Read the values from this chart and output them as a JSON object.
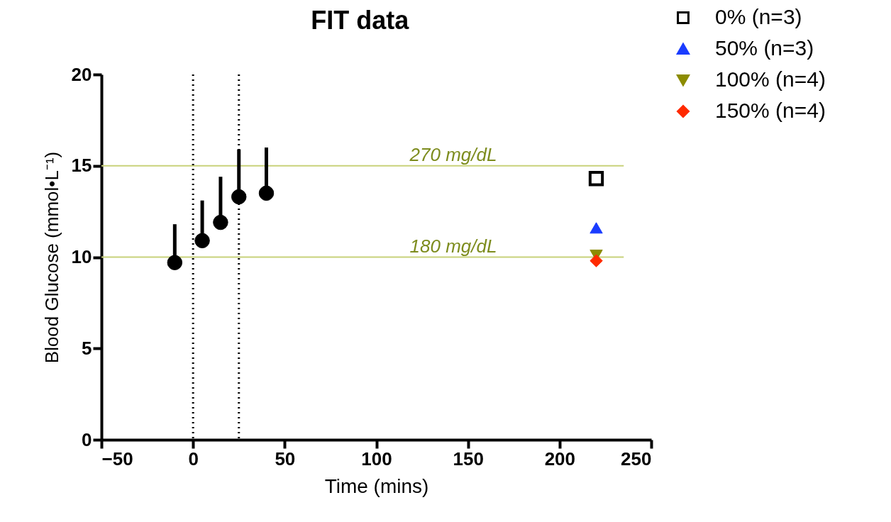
{
  "chart_data": {
    "type": "scatter",
    "title": "FIT data",
    "xlabel": "Time (mins)",
    "ylabel": "Blood Glucose (mmol•L⁻¹)",
    "xlim": [
      -50,
      250
    ],
    "xticks": [
      -50,
      0,
      50,
      100,
      150,
      200,
      250
    ],
    "ylim": [
      0,
      20
    ],
    "yticks": [
      0,
      5,
      10,
      15,
      20
    ],
    "grid": false,
    "legend": "top right",
    "series": [
      {
        "color": "#000000",
        "marker": "circle",
        "x": [
          -10,
          5,
          15,
          25,
          40
        ],
        "values": [
          9.7,
          10.9,
          11.9,
          13.3,
          13.5
        ],
        "errors": [
          [
            9.7,
            11.8
          ],
          [
            10.9,
            13.1
          ],
          [
            11.9,
            14.4
          ],
          [
            13.3,
            15.9
          ],
          [
            13.5,
            16.0
          ]
        ]
      },
      {
        "name": "0% (n=3)",
        "color": "#000000",
        "marker": "square",
        "x": [
          220
        ],
        "values": [
          14.3
        ]
      },
      {
        "name": "50% (n=3)",
        "color": "#1a3cff",
        "marker": "triangle",
        "x": [
          220
        ],
        "values": [
          11.6
        ]
      },
      {
        "name": "100% (n=4)",
        "color": "#8c8c00",
        "marker": "triangle-down",
        "x": [
          220
        ],
        "values": [
          10.1
        ]
      },
      {
        "name": "150% (n=4)",
        "color": "#ff2a00",
        "marker": "diamond",
        "x": [
          220
        ],
        "values": [
          9.8
        ]
      }
    ],
    "ref_lines": [
      {
        "axis": "y",
        "value": 15,
        "label": "270 mg/dL",
        "color": "#c8d27a"
      },
      {
        "axis": "y",
        "value": 10,
        "label": "180 mg/dL",
        "color": "#c8d27a"
      },
      {
        "axis": "x",
        "value": 0,
        "label": null,
        "color": "#000000",
        "line_style": "dotted"
      },
      {
        "axis": "x",
        "value": 25,
        "label": null,
        "color": "#000000",
        "line_style": "dotted"
      }
    ]
  }
}
